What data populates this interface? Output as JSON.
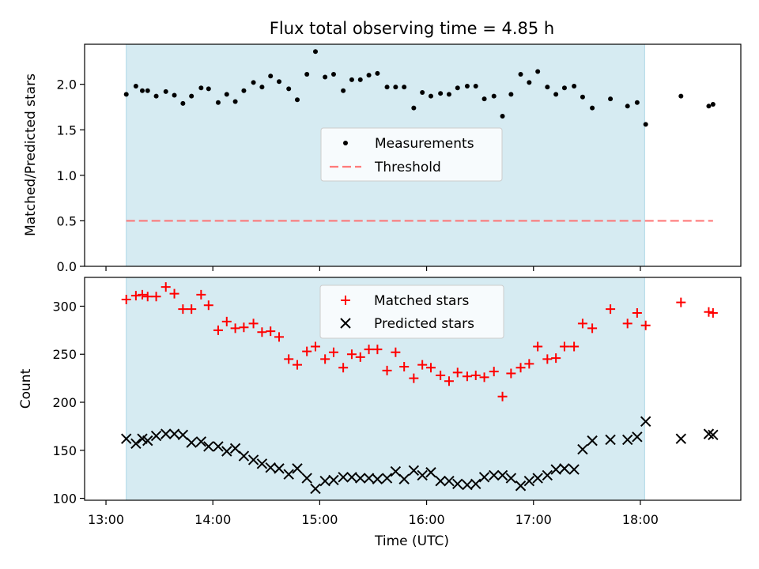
{
  "chart_data": [
    {
      "type": "scatter",
      "title": "Flux total observing time = 4.85 h",
      "xlabel": "",
      "ylabel": "Matched/Predicted stars",
      "xlim": [
        12.8,
        18.94
      ],
      "ylim": [
        0.0,
        2.44
      ],
      "yticks": [
        0.0,
        0.5,
        1.0,
        1.5,
        2.0
      ],
      "ytick_labels": [
        "0.0",
        "0.5",
        "1.0",
        "1.5",
        "2.0"
      ],
      "span": {
        "start": 13.19,
        "end": 18.04,
        "color": "#add8e6"
      },
      "threshold": {
        "name": "Threshold",
        "x": [
          13.19,
          18.68
        ],
        "y": 0.5,
        "color": "#ff6b6b",
        "style": "dashed"
      },
      "legend": {
        "placement": "center",
        "entries": [
          "Measurements",
          "Threshold"
        ]
      },
      "series": [
        {
          "name": "Measurements",
          "color": "#000000",
          "x": [
            13.19,
            13.28,
            13.34,
            13.39,
            13.47,
            13.56,
            13.64,
            13.72,
            13.8,
            13.89,
            13.96,
            14.05,
            14.13,
            14.21,
            14.29,
            14.38,
            14.46,
            14.54,
            14.62,
            14.71,
            14.79,
            14.88,
            14.96,
            15.05,
            15.13,
            15.22,
            15.3,
            15.38,
            15.46,
            15.54,
            15.63,
            15.71,
            15.79,
            15.88,
            15.96,
            16.04,
            16.13,
            16.21,
            16.29,
            16.38,
            16.46,
            16.54,
            16.63,
            16.71,
            16.79,
            16.88,
            16.96,
            17.04,
            17.13,
            17.21,
            17.29,
            17.38,
            17.46,
            17.55,
            17.72,
            17.88,
            17.97,
            18.05,
            18.38,
            18.64,
            18.68
          ],
          "y": [
            1.89,
            1.98,
            1.93,
            1.93,
            1.87,
            1.92,
            1.88,
            1.79,
            1.87,
            1.96,
            1.95,
            1.8,
            1.89,
            1.81,
            1.93,
            2.02,
            1.97,
            2.09,
            2.03,
            1.95,
            1.83,
            2.11,
            2.36,
            2.08,
            2.11,
            1.93,
            2.05,
            2.05,
            2.1,
            2.12,
            1.97,
            1.97,
            1.97,
            1.74,
            1.91,
            1.87,
            1.9,
            1.89,
            1.96,
            1.98,
            1.98,
            1.84,
            1.87,
            1.65,
            1.89,
            2.11,
            2.02,
            2.14,
            1.97,
            1.89,
            1.96,
            1.98,
            1.86,
            1.74,
            1.84,
            1.76,
            1.8,
            1.56,
            1.87,
            1.76,
            1.78
          ]
        }
      ]
    },
    {
      "type": "scatter",
      "title": "",
      "xlabel": "Time (UTC)",
      "ylabel": "Count",
      "xlim": [
        12.8,
        18.94
      ],
      "ylim": [
        98,
        330
      ],
      "yticks": [
        100,
        150,
        200,
        250,
        300
      ],
      "ytick_labels": [
        "100",
        "150",
        "200",
        "250",
        "300"
      ],
      "xticks": [
        13,
        14,
        15,
        16,
        17,
        18
      ],
      "xtick_labels": [
        "13:00",
        "14:00",
        "15:00",
        "16:00",
        "17:00",
        "18:00"
      ],
      "span": {
        "start": 13.19,
        "end": 18.04,
        "color": "#add8e6"
      },
      "legend": {
        "placement": "top-center",
        "entries": [
          "Matched stars",
          "Predicted stars"
        ]
      },
      "series": [
        {
          "name": "Matched stars",
          "marker": "+",
          "color": "#ff0000",
          "x": [
            13.19,
            13.28,
            13.34,
            13.39,
            13.47,
            13.56,
            13.64,
            13.72,
            13.8,
            13.89,
            13.96,
            14.05,
            14.13,
            14.21,
            14.29,
            14.38,
            14.46,
            14.54,
            14.62,
            14.71,
            14.79,
            14.88,
            14.96,
            15.05,
            15.13,
            15.22,
            15.3,
            15.38,
            15.46,
            15.54,
            15.63,
            15.71,
            15.79,
            15.88,
            15.96,
            16.04,
            16.13,
            16.21,
            16.29,
            16.38,
            16.46,
            16.54,
            16.63,
            16.71,
            16.79,
            16.88,
            16.96,
            17.04,
            17.13,
            17.21,
            17.29,
            17.38,
            17.46,
            17.55,
            17.72,
            17.88,
            17.97,
            18.05,
            18.38,
            18.64,
            18.68
          ],
          "y": [
            307,
            311,
            312,
            310,
            310,
            320,
            313,
            297,
            297,
            312,
            301,
            275,
            284,
            277,
            278,
            282,
            273,
            274,
            268,
            245,
            239,
            253,
            258,
            245,
            252,
            236,
            250,
            247,
            255,
            255,
            233,
            252,
            237,
            225,
            239,
            236,
            228,
            222,
            231,
            227,
            228,
            226,
            232,
            206,
            230,
            236,
            240,
            258,
            245,
            246,
            258,
            258,
            282,
            277,
            297,
            282,
            293,
            280,
            304,
            294,
            293
          ]
        },
        {
          "name": "Predicted stars",
          "marker": "x",
          "color": "#000000",
          "x": [
            13.19,
            13.28,
            13.34,
            13.39,
            13.47,
            13.56,
            13.64,
            13.72,
            13.8,
            13.89,
            13.96,
            14.05,
            14.13,
            14.21,
            14.29,
            14.38,
            14.46,
            14.54,
            14.62,
            14.71,
            14.79,
            14.88,
            14.96,
            15.05,
            15.13,
            15.22,
            15.3,
            15.38,
            15.46,
            15.54,
            15.63,
            15.71,
            15.79,
            15.88,
            15.96,
            16.04,
            16.13,
            16.21,
            16.29,
            16.38,
            16.46,
            16.54,
            16.63,
            16.71,
            16.79,
            16.88,
            16.96,
            17.04,
            17.13,
            17.21,
            17.29,
            17.38,
            17.46,
            17.55,
            17.72,
            17.88,
            17.97,
            18.05,
            18.38,
            18.64,
            18.68
          ],
          "y": [
            162,
            157,
            162,
            160,
            165,
            167,
            167,
            166,
            158,
            159,
            154,
            154,
            149,
            152,
            144,
            140,
            136,
            132,
            131,
            125,
            131,
            121,
            110,
            118,
            119,
            122,
            122,
            121,
            121,
            120,
            121,
            128,
            120,
            129,
            124,
            127,
            118,
            118,
            115,
            114,
            115,
            122,
            124,
            124,
            121,
            113,
            118,
            121,
            124,
            130,
            131,
            130,
            151,
            160,
            161,
            161,
            164,
            180,
            162,
            167,
            166
          ]
        }
      ]
    }
  ]
}
